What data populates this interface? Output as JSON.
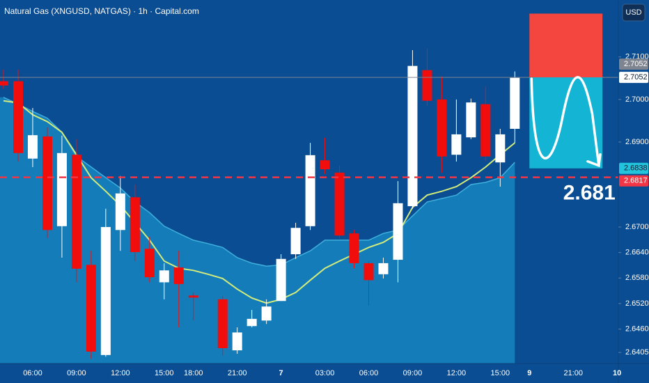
{
  "chart_data": {
    "type": "candlestick",
    "title": "Natural Gas (XNGUSD, NATGAS) · 1h · Capital.com",
    "currency": "USD",
    "categories": [
      null,
      null,
      "06:00",
      null,
      null,
      "09:00",
      null,
      null,
      "12:00",
      null,
      null,
      "15:00",
      null,
      "18:00",
      null,
      null,
      "21:00",
      null,
      null,
      "7",
      null,
      null,
      "03:00",
      null,
      null,
      "06:00",
      null,
      null,
      "09:00",
      null,
      null,
      "12:00",
      null,
      null,
      "15:00",
      null,
      "9",
      null,
      null,
      "21:00",
      null,
      null,
      "10"
    ],
    "open": [
      2.7043,
      2.7043,
      2.6861,
      2.6913,
      2.6702,
      2.687,
      2.6611,
      2.6399,
      2.6693,
      2.677,
      2.6649,
      2.657,
      2.6605,
      2.6539,
      null,
      2.653,
      2.641,
      2.6467,
      2.648,
      2.6526,
      2.6636,
      2.6702,
      2.6857,
      2.6828,
      2.6685,
      2.6615,
      2.6589,
      2.6623,
      2.6749,
      2.7069,
      2.7,
      2.687,
      2.6911,
      2.6989,
      2.6852,
      2.6931,
      null,
      null,
      null,
      null,
      null,
      null,
      null
    ],
    "high": [
      2.707,
      2.707,
      2.698,
      2.6934,
      2.6915,
      2.6907,
      2.6644,
      2.6743,
      2.682,
      2.68,
      2.6677,
      2.6615,
      2.6644,
      2.6546,
      null,
      2.6538,
      2.6464,
      2.6505,
      2.653,
      2.6636,
      2.671,
      2.6898,
      2.691,
      2.6844,
      2.6693,
      2.662,
      2.6628,
      2.6808,
      2.7116,
      2.712,
      2.7054,
      2.7,
      2.7002,
      2.703,
      2.6931,
      2.7066,
      null,
      null,
      null,
      null,
      null,
      null,
      null
    ],
    "low": [
      2.7025,
      2.6854,
      2.6841,
      2.6674,
      2.6628,
      2.657,
      2.639,
      2.6395,
      2.6644,
      2.662,
      2.657,
      2.653,
      2.6464,
      2.648,
      null,
      2.6398,
      2.6402,
      2.6464,
      2.6472,
      2.6526,
      2.6625,
      2.6693,
      2.6825,
      2.6674,
      2.6603,
      2.6516,
      2.6579,
      2.657,
      2.6743,
      2.6985,
      2.6828,
      2.6854,
      2.6907,
      2.6854,
      2.6795,
      2.6898,
      null,
      null,
      null,
      null,
      null,
      null,
      null
    ],
    "close": [
      2.7033,
      2.6874,
      2.6916,
      2.6693,
      2.6874,
      2.6602,
      2.6407,
      2.67,
      2.6779,
      2.6641,
      2.6582,
      2.6598,
      2.6566,
      2.6534,
      null,
      2.6415,
      2.6452,
      2.6484,
      2.6513,
      2.6625,
      2.6698,
      2.6869,
      2.6836,
      2.668,
      2.6615,
      2.6575,
      2.6615,
      2.6756,
      2.7079,
      2.6997,
      2.6866,
      2.6918,
      2.6993,
      2.6866,
      2.6918,
      2.7051,
      null,
      null,
      null,
      null,
      null,
      null,
      null
    ],
    "up_color": "#ffffff",
    "down_color": "#f20d0d",
    "indicators": [
      {
        "type": "area",
        "color": "#1686c0",
        "values": [
          2.7005,
          2.6989,
          2.6972,
          2.6956,
          2.6923,
          2.6866,
          2.6841,
          2.6816,
          2.6792,
          2.6759,
          2.6734,
          2.6702,
          2.6685,
          2.6669,
          2.6661,
          2.6652,
          2.6628,
          2.6615,
          2.6608,
          2.6611,
          2.6628,
          2.6644,
          2.6669,
          2.6669,
          2.6669,
          2.6669,
          2.6685,
          2.6693,
          2.6726,
          2.6759,
          2.6767,
          2.6775,
          2.68,
          2.6805,
          2.6816,
          2.6852,
          null,
          null,
          null,
          null,
          null,
          null,
          null
        ]
      },
      {
        "type": "line",
        "color": "#d4ec7a",
        "values": [
          2.6997,
          2.6992,
          2.6964,
          2.6948,
          2.6923,
          2.687,
          2.6816,
          2.6784,
          2.6751,
          2.671,
          2.6669,
          2.662,
          2.6603,
          2.6598,
          2.6589,
          2.6579,
          2.6554,
          2.6533,
          2.6521,
          2.653,
          2.6546,
          2.6575,
          2.6603,
          2.662,
          2.6636,
          2.6652,
          2.6664,
          2.6685,
          2.6746,
          2.6775,
          2.6784,
          2.6795,
          2.6816,
          2.6841,
          2.687,
          2.6898,
          null,
          null,
          null,
          null,
          null,
          null,
          null
        ]
      }
    ],
    "ylim": [
      2.6379,
      2.7234
    ],
    "yticks": [
      {
        "value": 2.71,
        "label": "2.7100"
      },
      {
        "value": 2.7,
        "label": "2.7000"
      },
      {
        "value": 2.69,
        "label": "2.6900"
      },
      {
        "value": 2.67,
        "label": "2.6700"
      },
      {
        "value": 2.664,
        "label": "2.6640"
      },
      {
        "value": 2.658,
        "label": "2.6580"
      },
      {
        "value": 2.652,
        "label": "2.6520"
      },
      {
        "value": 2.646,
        "label": "2.6460"
      },
      {
        "value": 2.6405,
        "label": "2.6405"
      }
    ],
    "grid": false,
    "price_lines": [
      {
        "value": 2.7052,
        "label": "2.7052",
        "color": "#ffffff",
        "line": "none"
      },
      {
        "value": 2.7052,
        "label": "2.7052",
        "color": "#7f8590",
        "line": "solid"
      },
      {
        "value": 2.6838,
        "label": "2.6838",
        "color": "#22c4dc",
        "line": "none"
      },
      {
        "value": 2.6817,
        "label": "2.6817",
        "color": "#f23645",
        "line": "dashed"
      }
    ],
    "position": {
      "entry": 2.7052,
      "stop": 2.7202,
      "target": 2.6838,
      "start": 36,
      "end": 41,
      "stop_color": "#f4463f",
      "target_color": "#14b4d4"
    },
    "annotation": {
      "text": "2.681",
      "color": "#ffffff"
    }
  }
}
